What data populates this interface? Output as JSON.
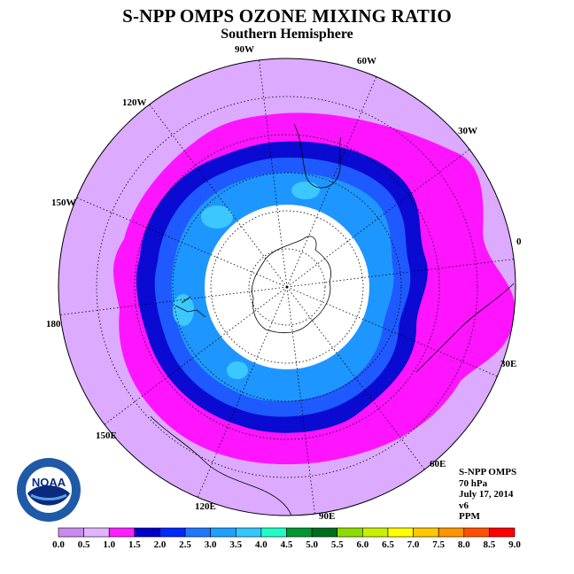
{
  "title": "S-NPP OMPS OZONE MIXING RATIO",
  "subtitle": "Southern Hemisphere",
  "longitude_labels": [
    "90W",
    "60W",
    "30W",
    "0",
    "30E",
    "60E",
    "90E",
    "120E",
    "150E",
    "180",
    "150W",
    "120W"
  ],
  "info": {
    "instrument": "S-NPP OMPS",
    "level": "70 hPa",
    "date": "July 17, 2014",
    "version": "v6",
    "units": "PPM"
  },
  "colorbar": {
    "ticks": [
      "0.0",
      "0.5",
      "1.0",
      "1.5",
      "2.0",
      "2.5",
      "3.0",
      "3.5",
      "4.0",
      "4.5",
      "5.0",
      "5.5",
      "6.0",
      "6.5",
      "7.0",
      "7.5",
      "8.0",
      "8.5",
      "9.0"
    ],
    "colors": [
      "#c88cf0",
      "#e0b4ff",
      "#ff1eff",
      "#0000c8",
      "#0028ff",
      "#1e78ff",
      "#1ea0ff",
      "#32c8ff",
      "#1effc8",
      "#009632",
      "#006e1e",
      "#8cdc00",
      "#c8f000",
      "#ffff00",
      "#ffc800",
      "#ff9600",
      "#ff5000",
      "#ff0000",
      "#8c5a3c"
    ]
  },
  "map_colors": {
    "outer": "#dcaaff",
    "magenta": "#ff14ff",
    "dark_blue": "#0a0ad2",
    "blue": "#1e5aff",
    "mid_blue": "#1e96ff",
    "light_blue": "#3cc8ff",
    "no_data": "#ffffff"
  },
  "logo_text": "NOAA"
}
